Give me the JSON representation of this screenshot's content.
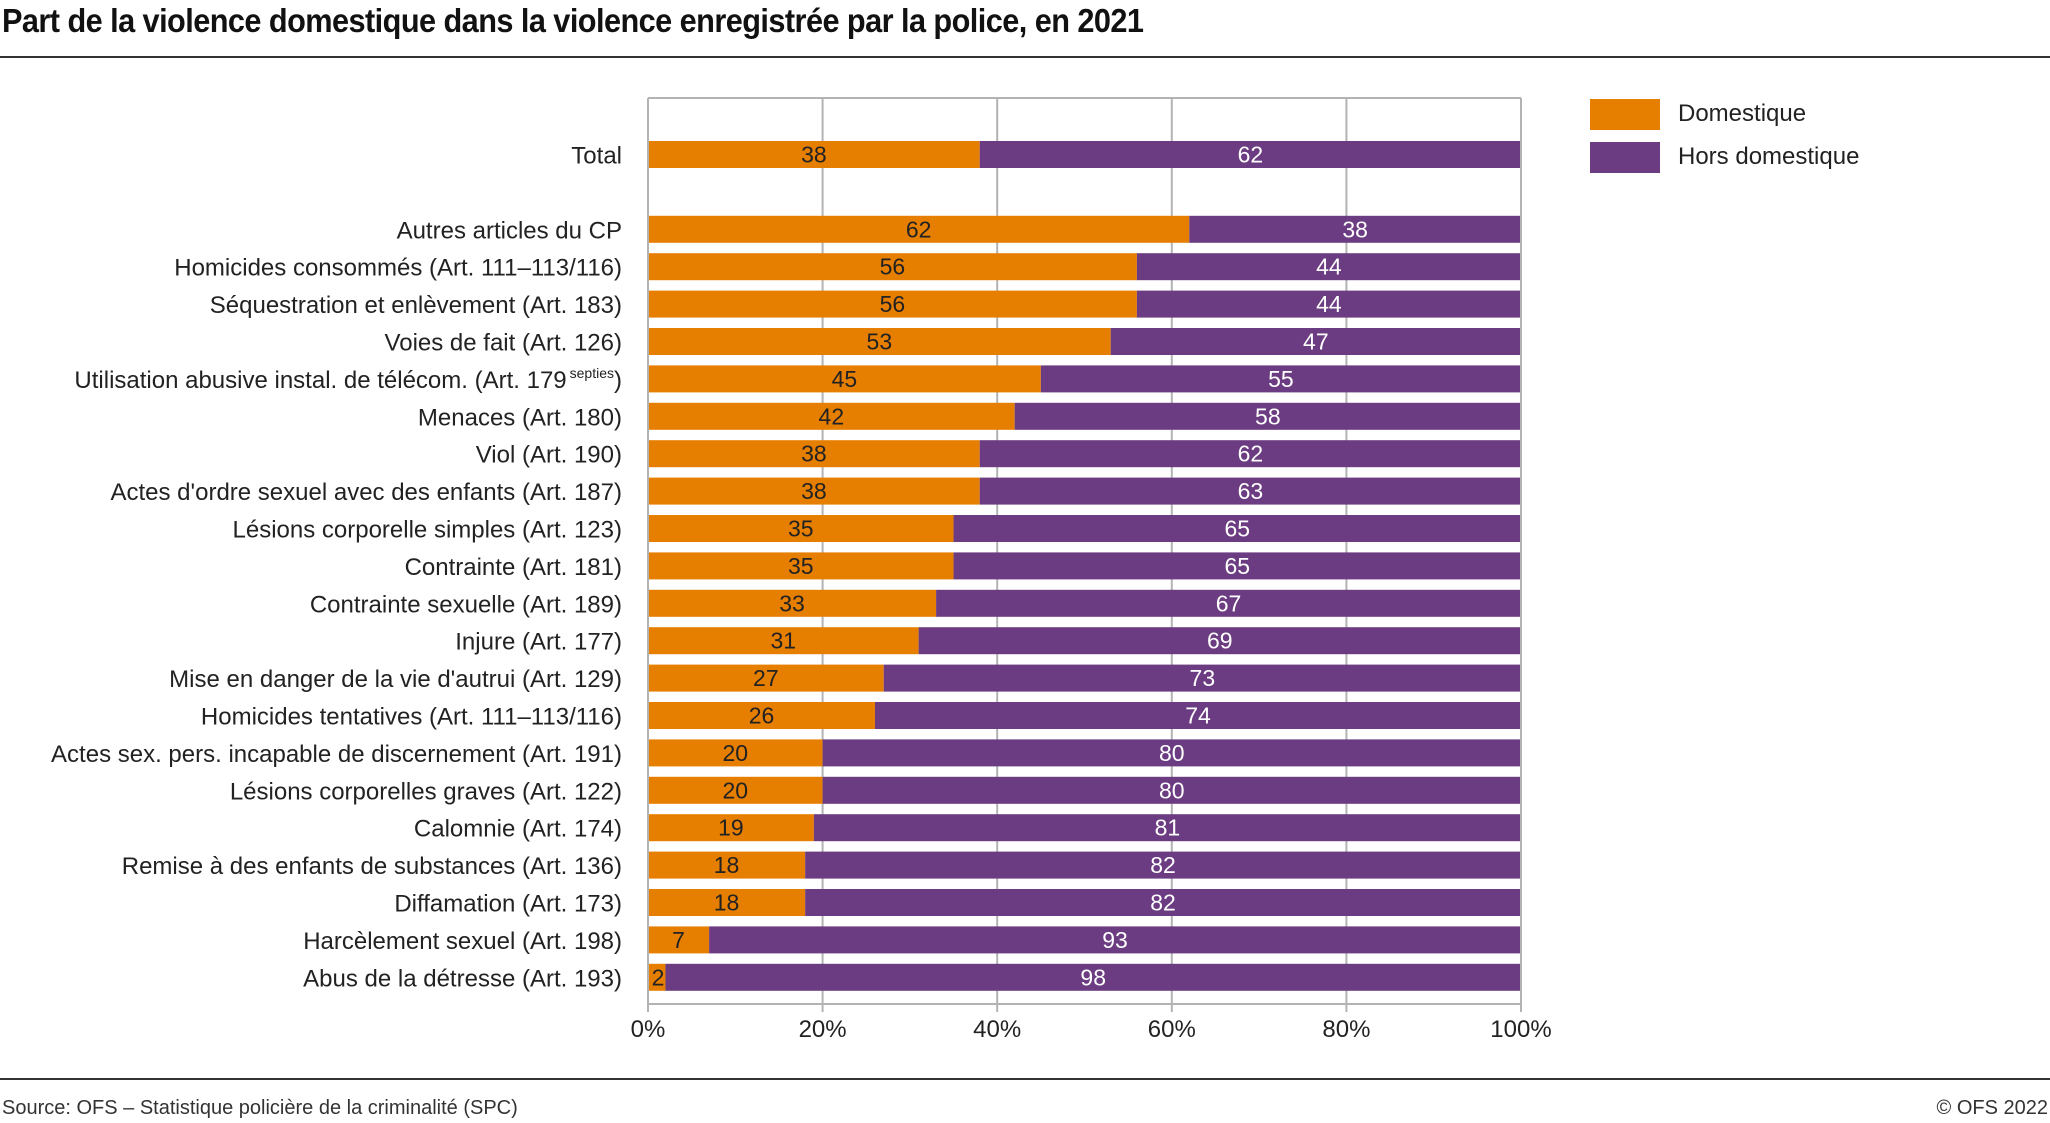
{
  "title": "Part de la violence domestique dans la violence enregistrée par la police, en 2021",
  "footer": {
    "source": "Source: OFS – Statistique policière de la criminalité (SPC)",
    "copyright": "© OFS 2022"
  },
  "colors": {
    "domestique": "#E67E00",
    "hors_domestique": "#6C3C82",
    "grid": "#b3b3b3"
  },
  "legend": [
    {
      "label": "Domestique",
      "color": "#E67E00"
    },
    {
      "label": "Hors domestique",
      "color": "#6C3C82"
    }
  ],
  "chart_data": {
    "type": "bar",
    "orientation": "horizontal",
    "stacked": true,
    "title": "Part de la violence domestique dans la violence enregistrée par la police, en 2021",
    "xlabel": "",
    "ylabel": "",
    "xlim": [
      0,
      100
    ],
    "x_ticks": [
      "0%",
      "20%",
      "40%",
      "60%",
      "80%",
      "100%"
    ],
    "grid": true,
    "legend_position": "top-right",
    "categories": [
      {
        "label": "Total",
        "sup": ""
      },
      {
        "label": "Autres articles du CP",
        "sup": ""
      },
      {
        "label": "Homicides consommés (Art. 111–113/116)",
        "sup": ""
      },
      {
        "label": "Séquestration et enlèvement (Art. 183)",
        "sup": ""
      },
      {
        "label": "Voies de fait (Art. 126)",
        "sup": ""
      },
      {
        "label": "Utilisation abusive instal. de télécom. (Art. 179",
        "sup": "septies",
        "suffix": ")"
      },
      {
        "label": "Menaces (Art. 180)",
        "sup": ""
      },
      {
        "label": "Viol (Art. 190)",
        "sup": ""
      },
      {
        "label": "Actes d'ordre sexuel avec des enfants (Art. 187)",
        "sup": ""
      },
      {
        "label": "Lésions corporelle simples (Art. 123)",
        "sup": ""
      },
      {
        "label": "Contrainte (Art. 181)",
        "sup": ""
      },
      {
        "label": "Contrainte sexuelle (Art. 189)",
        "sup": ""
      },
      {
        "label": "Injure (Art. 177)",
        "sup": ""
      },
      {
        "label": "Mise en danger de la vie d'autrui (Art. 129)",
        "sup": ""
      },
      {
        "label": "Homicides tentatives (Art. 111–113/116)",
        "sup": ""
      },
      {
        "label": "Actes sex. pers. incapable de discernement (Art. 191)",
        "sup": ""
      },
      {
        "label": "Lésions corporelles graves (Art. 122)",
        "sup": ""
      },
      {
        "label": "Calomnie (Art. 174)",
        "sup": ""
      },
      {
        "label": "Remise à des enfants de substances (Art. 136)",
        "sup": ""
      },
      {
        "label": "Diffamation (Art. 173)",
        "sup": ""
      },
      {
        "label": "Harcèlement sexuel (Art. 198)",
        "sup": ""
      },
      {
        "label": "Abus de la détresse (Art. 193)",
        "sup": ""
      }
    ],
    "series": [
      {
        "name": "Domestique",
        "values": [
          38,
          62,
          56,
          56,
          53,
          45,
          42,
          38,
          38,
          35,
          35,
          33,
          31,
          27,
          26,
          20,
          20,
          19,
          18,
          18,
          7,
          2
        ]
      },
      {
        "name": "Hors domestique",
        "values": [
          62,
          38,
          44,
          44,
          47,
          55,
          58,
          62,
          63,
          65,
          65,
          67,
          69,
          73,
          74,
          80,
          80,
          81,
          82,
          82,
          93,
          98
        ]
      }
    ]
  }
}
